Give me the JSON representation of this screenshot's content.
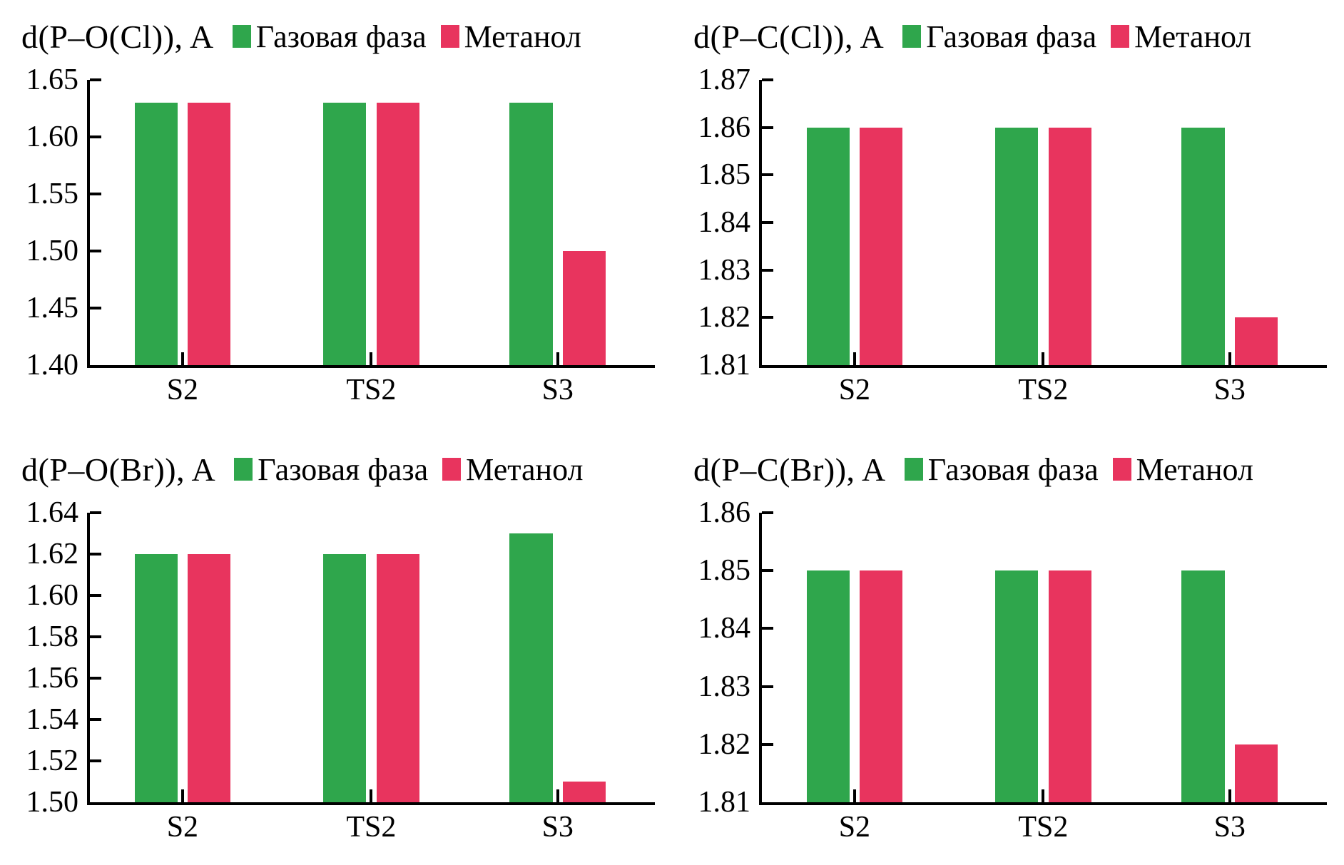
{
  "figure": {
    "background": "#ffffff",
    "text_color": "#000000",
    "axis_color": "#000000"
  },
  "legend": {
    "items": [
      {
        "label": "Газовая фаза",
        "color": "#2FA64C"
      },
      {
        "label": "Метанол",
        "color": "#E8345E"
      }
    ]
  },
  "chart_data": [
    {
      "type": "bar",
      "title": "d(P–O(Cl)), A",
      "categories": [
        "S2",
        "TS2",
        "S3"
      ],
      "series": [
        {
          "name": "Газовая фаза",
          "color": "#2FA64C",
          "values": [
            1.63,
            1.63,
            1.63
          ]
        },
        {
          "name": "Метанол",
          "color": "#E8345E",
          "values": [
            1.63,
            1.63,
            1.5
          ]
        }
      ],
      "ylim": [
        1.4,
        1.65
      ],
      "yticks": [
        1.65,
        1.6,
        1.55,
        1.5,
        1.45,
        1.4
      ],
      "ytick_labels": [
        "1.65",
        "1.60",
        "1.55",
        "1.50",
        "1.45",
        "1.40"
      ],
      "grid": false,
      "legend_position": "top"
    },
    {
      "type": "bar",
      "title": "d(P–C(Cl)), A",
      "categories": [
        "S2",
        "TS2",
        "S3"
      ],
      "series": [
        {
          "name": "Газовая фаза",
          "color": "#2FA64C",
          "values": [
            1.86,
            1.86,
            1.86
          ]
        },
        {
          "name": "Метанол",
          "color": "#E8345E",
          "values": [
            1.86,
            1.86,
            1.82
          ]
        }
      ],
      "ylim": [
        1.81,
        1.87
      ],
      "yticks": [
        1.87,
        1.86,
        1.85,
        1.84,
        1.83,
        1.82,
        1.81
      ],
      "ytick_labels": [
        "1.87",
        "1.86",
        "1.85",
        "1.84",
        "1.83",
        "1.82",
        "1.81"
      ],
      "grid": false,
      "legend_position": "top"
    },
    {
      "type": "bar",
      "title": "d(P–O(Br)), A",
      "categories": [
        "S2",
        "TS2",
        "S3"
      ],
      "series": [
        {
          "name": "Газовая фаза",
          "color": "#2FA64C",
          "values": [
            1.62,
            1.62,
            1.63
          ]
        },
        {
          "name": "Метанол",
          "color": "#E8345E",
          "values": [
            1.62,
            1.62,
            1.51
          ]
        }
      ],
      "ylim": [
        1.5,
        1.64
      ],
      "yticks": [
        1.64,
        1.62,
        1.6,
        1.58,
        1.56,
        1.54,
        1.52,
        1.5
      ],
      "ytick_labels": [
        "1.64",
        "1.62",
        "1.60",
        "1.58",
        "1.56",
        "1.54",
        "1.52",
        "1.50"
      ],
      "grid": false,
      "legend_position": "top"
    },
    {
      "type": "bar",
      "title": "d(P–C(Br)), A",
      "categories": [
        "S2",
        "TS2",
        "S3"
      ],
      "series": [
        {
          "name": "Газовая фаза",
          "color": "#2FA64C",
          "values": [
            1.85,
            1.85,
            1.85
          ]
        },
        {
          "name": "Метанол",
          "color": "#E8345E",
          "values": [
            1.85,
            1.85,
            1.82
          ]
        }
      ],
      "ylim": [
        1.81,
        1.86
      ],
      "yticks": [
        1.86,
        1.85,
        1.84,
        1.83,
        1.82,
        1.81
      ],
      "ytick_labels": [
        "1.86",
        "1.85",
        "1.84",
        "1.83",
        "1.82",
        "1.81"
      ],
      "grid": false,
      "legend_position": "top"
    }
  ]
}
